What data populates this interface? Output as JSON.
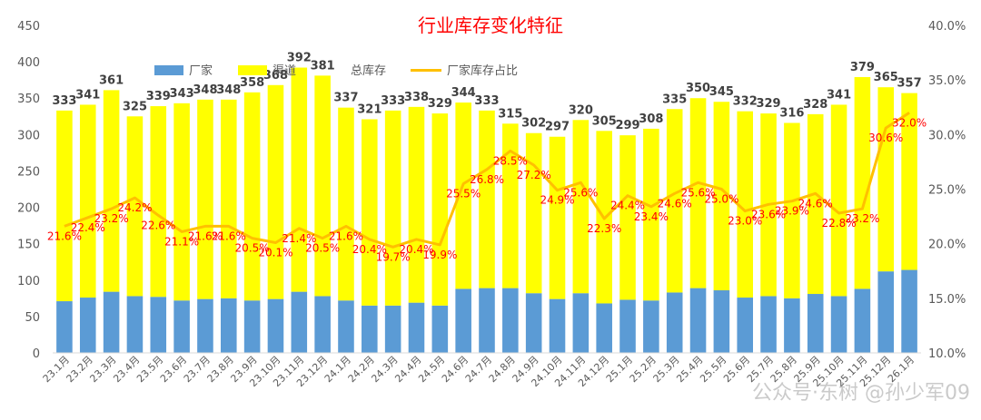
{
  "chart_data": {
    "type": "bar",
    "title": "行业库存变化特征",
    "categories": [
      "23.1月",
      "23.2月",
      "23.3月",
      "23.4月",
      "23.5月",
      "23.6月",
      "23.7月",
      "23.8月",
      "23.9月",
      "23.10月",
      "23.11月",
      "23.12月",
      "24.1月",
      "24.2月",
      "24.3月",
      "24.4月",
      "24.5月",
      "24.6月",
      "24.7月",
      "24.8月",
      "24.9月",
      "24.10月",
      "24.11月",
      "24.12月",
      "25.1月",
      "25.2月",
      "25.3月",
      "25.4月",
      "25.5月",
      "25.6月",
      "25.7月",
      "25.8月",
      "25.9月",
      "25.10月",
      "25.11月",
      "25.12月",
      "26.1月"
    ],
    "series": [
      {
        "name": "厂家",
        "type": "bar-stacked",
        "axis": "left",
        "color": "#5B9BD5",
        "values": [
          71,
          76,
          84,
          78,
          77,
          72,
          74,
          75,
          72,
          74,
          84,
          78,
          72,
          65,
          65,
          69,
          65,
          88,
          89,
          89,
          82,
          74,
          82,
          68,
          73,
          72,
          83,
          89,
          86,
          76,
          78,
          75,
          81,
          78,
          88,
          112,
          114
        ]
      },
      {
        "name": "渠道",
        "type": "bar-stacked",
        "axis": "left",
        "color": "#FFFF00",
        "values": [
          262,
          265,
          277,
          247,
          262,
          271,
          274,
          273,
          286,
          294,
          308,
          303,
          265,
          256,
          268,
          269,
          264,
          256,
          244,
          226,
          220,
          223,
          238,
          237,
          226,
          236,
          252,
          261,
          259,
          256,
          251,
          241,
          247,
          263,
          291,
          253,
          243
        ]
      },
      {
        "name": "总库存",
        "type": "label",
        "axis": "left",
        "values": [
          333,
          341,
          361,
          325,
          339,
          343,
          348,
          348,
          358,
          368,
          392,
          381,
          337,
          321,
          333,
          338,
          329,
          344,
          333,
          315,
          302,
          297,
          320,
          305,
          299,
          308,
          335,
          350,
          345,
          332,
          329,
          316,
          328,
          341,
          379,
          365,
          357
        ]
      },
      {
        "name": "厂家库存占比",
        "type": "line",
        "axis": "right",
        "color": "#FFC000",
        "values": [
          21.6,
          22.4,
          23.2,
          24.2,
          22.6,
          21.1,
          21.6,
          21.6,
          20.5,
          20.1,
          21.4,
          20.5,
          21.6,
          20.4,
          19.7,
          20.4,
          19.9,
          25.5,
          26.8,
          28.5,
          27.2,
          24.9,
          25.6,
          22.3,
          24.4,
          23.4,
          24.6,
          25.6,
          25.0,
          23.0,
          23.6,
          23.9,
          24.6,
          22.8,
          23.2,
          30.6,
          32.0
        ],
        "labels": [
          "21.6%",
          "22.4%",
          "23.2%",
          "24.2%",
          "22.6%",
          "21.1%",
          "21.6%",
          "21.6%",
          "20.5%",
          "20.1%",
          "21.4%",
          "20.5%",
          "21.6%",
          "20.4%",
          "19.7%",
          "20.4%",
          "19.9%",
          "25.5%",
          "26.8%",
          "28.5%",
          "27.2%",
          "24.9%",
          "25.6%",
          "22.3%",
          "24.4%",
          "23.4%",
          "24.6%",
          "25.6%",
          "25.0%",
          "23.0%",
          "23.6%",
          "23.9%",
          "24.6%",
          "22.8%",
          "23.2%",
          "30.6%",
          "32.0%"
        ]
      }
    ],
    "y_left": {
      "min": 0,
      "max": 450,
      "ticks": [
        "0",
        "50",
        "100",
        "150",
        "200",
        "250",
        "300",
        "350",
        "400",
        "450"
      ]
    },
    "y_right": {
      "min": 10,
      "max": 40,
      "ticks": [
        "10.0%",
        "15.0%",
        "20.0%",
        "25.0%",
        "30.0%",
        "35.0%",
        "40.0%"
      ]
    },
    "legend": {
      "position": "top",
      "items": [
        "厂家",
        "渠道",
        "总库存",
        "厂家库存占比"
      ]
    },
    "grid": false,
    "colors": {
      "total_label": "#404040",
      "pct_label": "#FF0000",
      "title": "#FF0000",
      "axis_text": "#595959"
    },
    "watermark": "公众号·东树 @孙少军09"
  }
}
